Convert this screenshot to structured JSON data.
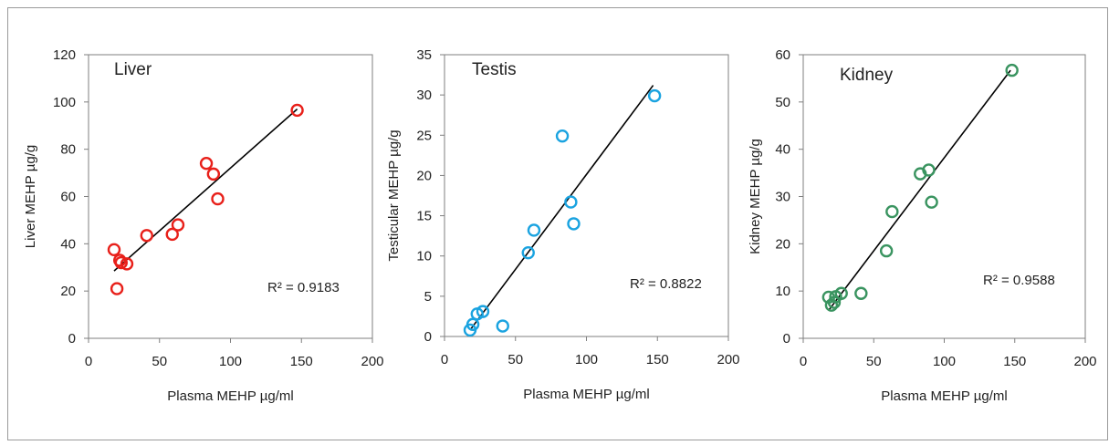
{
  "chart_data": [
    {
      "type": "scatter",
      "panel_label": "Liver",
      "xlabel": "Plasma MEHP µg/ml",
      "ylabel": "Liver MEHP µg/g",
      "xlim": [
        0,
        200
      ],
      "ylim": [
        0,
        120
      ],
      "xticks": [
        "0",
        "50",
        "100",
        "150",
        "200"
      ],
      "yticks": [
        "0",
        "20",
        "40",
        "60",
        "80",
        "100",
        "120"
      ],
      "r2_label": "R² = 0.9183",
      "marker_color": "#e8201a",
      "trend_color": "#000000",
      "grid": false,
      "points": [
        {
          "x": 18,
          "y": 37.5
        },
        {
          "x": 20,
          "y": 21
        },
        {
          "x": 22,
          "y": 33
        },
        {
          "x": 23,
          "y": 32
        },
        {
          "x": 27,
          "y": 31.5
        },
        {
          "x": 41,
          "y": 43.5
        },
        {
          "x": 59,
          "y": 44
        },
        {
          "x": 63,
          "y": 48
        },
        {
          "x": 83,
          "y": 74
        },
        {
          "x": 88,
          "y": 69.5
        },
        {
          "x": 91,
          "y": 59
        },
        {
          "x": 147,
          "y": 96.5
        }
      ],
      "trendline": {
        "x": [
          18,
          147
        ],
        "y": [
          28.5,
          97
        ]
      }
    },
    {
      "type": "scatter",
      "panel_label": "Testis",
      "xlabel": "Plasma MEHP µg/ml",
      "ylabel": "Testicular MEHP µg/g",
      "xlim": [
        0,
        200
      ],
      "ylim": [
        0,
        35
      ],
      "xticks": [
        "0",
        "50",
        "100",
        "150",
        "200"
      ],
      "yticks": [
        "0",
        "5",
        "10",
        "15",
        "20",
        "25",
        "30",
        "35"
      ],
      "r2_label": "R² = 0.8822",
      "marker_color": "#1aa3e0",
      "trend_color": "#000000",
      "grid": false,
      "points": [
        {
          "x": 18,
          "y": 0.8
        },
        {
          "x": 20,
          "y": 1.5
        },
        {
          "x": 23,
          "y": 2.8
        },
        {
          "x": 27,
          "y": 3.1
        },
        {
          "x": 41,
          "y": 1.3
        },
        {
          "x": 59,
          "y": 10.4
        },
        {
          "x": 63,
          "y": 13.2
        },
        {
          "x": 83,
          "y": 24.9
        },
        {
          "x": 89,
          "y": 16.7
        },
        {
          "x": 91,
          "y": 14
        },
        {
          "x": 148,
          "y": 29.9
        }
      ],
      "trendline": {
        "x": [
          18,
          147
        ],
        "y": [
          0.8,
          31.2
        ]
      }
    },
    {
      "type": "scatter",
      "panel_label": "Kidney",
      "xlabel": "Plasma MEHP µg/ml",
      "ylabel": "Kidney MEHP µg/g",
      "xlim": [
        0,
        200
      ],
      "ylim": [
        0,
        60
      ],
      "xticks": [
        "0",
        "50",
        "100",
        "150",
        "200"
      ],
      "yticks": [
        "0",
        "10",
        "20",
        "30",
        "40",
        "50",
        "60"
      ],
      "r2_label": "R² = 0.9588",
      "marker_color": "#3a9460",
      "trend_color": "#000000",
      "grid": false,
      "points": [
        {
          "x": 18,
          "y": 8.7
        },
        {
          "x": 20,
          "y": 7
        },
        {
          "x": 22,
          "y": 7.6
        },
        {
          "x": 23,
          "y": 8.8
        },
        {
          "x": 27,
          "y": 9.5
        },
        {
          "x": 41,
          "y": 9.5
        },
        {
          "x": 59,
          "y": 18.5
        },
        {
          "x": 63,
          "y": 26.8
        },
        {
          "x": 83,
          "y": 34.8
        },
        {
          "x": 89,
          "y": 35.6
        },
        {
          "x": 91,
          "y": 28.8
        },
        {
          "x": 148,
          "y": 56.7
        }
      ],
      "trendline": {
        "x": [
          18,
          147
        ],
        "y": [
          5.9,
          56.7
        ]
      }
    }
  ]
}
